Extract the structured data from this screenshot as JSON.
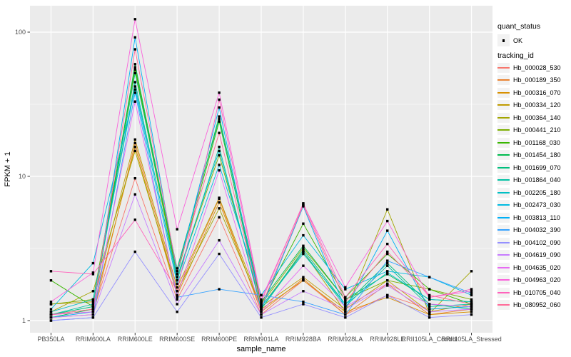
{
  "chart_data": {
    "type": "line",
    "title": "",
    "xlabel": "sample_name",
    "ylabel": "FPKM + 1",
    "y_scale": "log10",
    "ylim": [
      0.82,
      152
    ],
    "y_ticks": [
      1,
      10,
      100
    ],
    "y_minor_ticks": [
      3.1623,
      31.6228
    ],
    "grid": true,
    "legend_position": "right",
    "categories": [
      "PB350LA",
      "RRIM600LA",
      "RRIM600LE",
      "RRIM600SE",
      "RRIM600PE",
      "RRIM901LA",
      "RRIM928BA",
      "RRIM928LA",
      "RRIM928LE",
      "RRII105LA_Control",
      "RRII105LA_Stressed"
    ],
    "series": [
      {
        "name": "Hb_000028_530",
        "color": "#F8766D",
        "values": [
          1.1,
          1.15,
          9.7,
          1.4,
          5.2,
          1.1,
          1.9,
          1.1,
          1.5,
          1.2,
          1.25
        ]
      },
      {
        "name": "Hb_000189_350",
        "color": "#EA8331",
        "values": [
          1.05,
          1.1,
          17.0,
          1.6,
          7.0,
          1.15,
          1.95,
          1.1,
          1.8,
          1.1,
          1.2
        ]
      },
      {
        "name": "Hb_000316_070",
        "color": "#D89000",
        "values": [
          1.1,
          1.2,
          16.0,
          1.5,
          6.6,
          1.2,
          1.9,
          1.15,
          1.45,
          1.1,
          1.15
        ]
      },
      {
        "name": "Hb_000334_120",
        "color": "#C09B00",
        "values": [
          1.3,
          1.35,
          18.0,
          1.7,
          7.1,
          1.25,
          2.0,
          1.2,
          1.9,
          1.15,
          1.3
        ]
      },
      {
        "name": "Hb_000364_140",
        "color": "#A3A500",
        "values": [
          1.15,
          1.6,
          15.0,
          1.6,
          6.0,
          1.25,
          3.0,
          1.15,
          5.9,
          1.12,
          2.2
        ]
      },
      {
        "name": "Hb_000441_210",
        "color": "#7CAE00",
        "values": [
          1.3,
          1.4,
          55.0,
          2.0,
          14.0,
          1.3,
          3.2,
          1.4,
          1.9,
          1.65,
          1.4
        ]
      },
      {
        "name": "Hb_001168_030",
        "color": "#39B600",
        "values": [
          1.9,
          1.25,
          57.0,
          2.1,
          24.0,
          1.3,
          4.7,
          1.45,
          2.9,
          1.65,
          1.3
        ]
      },
      {
        "name": "Hb_001454_180",
        "color": "#00BB4E",
        "values": [
          1.05,
          1.2,
          60.0,
          2.2,
          26.0,
          1.35,
          3.3,
          1.4,
          2.1,
          1.4,
          1.35
        ]
      },
      {
        "name": "Hb_001699_070",
        "color": "#00BF7D",
        "values": [
          1.1,
          1.25,
          52.0,
          2.3,
          25.0,
          1.2,
          3.1,
          1.3,
          2.5,
          1.3,
          1.2
        ]
      },
      {
        "name": "Hb_001864_040",
        "color": "#00C1A3",
        "values": [
          1.1,
          1.3,
          45.0,
          1.9,
          16.0,
          1.2,
          3.0,
          1.25,
          2.4,
          1.25,
          1.3
        ]
      },
      {
        "name": "Hb_002205_180",
        "color": "#00BFC4",
        "values": [
          1.15,
          1.4,
          42.0,
          2.0,
          15.0,
          1.25,
          2.9,
          1.3,
          2.15,
          1.4,
          1.35
        ]
      },
      {
        "name": "Hb_002473_030",
        "color": "#00BAE0",
        "values": [
          1.2,
          2.5,
          40.0,
          1.8,
          12.0,
          1.5,
          3.9,
          1.65,
          2.2,
          2.0,
          1.5
        ]
      },
      {
        "name": "Hb_003813_110",
        "color": "#00B0F6",
        "values": [
          1.05,
          1.15,
          92.0,
          2.1,
          30.0,
          1.2,
          6.2,
          1.2,
          4.2,
          1.2,
          1.25
        ]
      },
      {
        "name": "Hb_004032_390",
        "color": "#35A2FF",
        "values": [
          1.0,
          1.05,
          38.0,
          1.45,
          1.65,
          1.5,
          1.35,
          1.1,
          2.6,
          2.0,
          1.55
        ]
      },
      {
        "name": "Hb_004102_090",
        "color": "#9590FF",
        "values": [
          1.0,
          1.05,
          3.0,
          1.15,
          2.9,
          1.05,
          1.3,
          1.05,
          1.5,
          1.05,
          1.1
        ]
      },
      {
        "name": "Hb_004619_090",
        "color": "#C77CFF",
        "values": [
          1.05,
          1.1,
          7.5,
          1.3,
          3.6,
          1.1,
          1.6,
          1.2,
          1.75,
          1.15,
          1.2
        ]
      },
      {
        "name": "Hb_004635_020",
        "color": "#E76BF3",
        "values": [
          1.1,
          1.15,
          33.0,
          1.5,
          11.0,
          1.15,
          2.4,
          1.25,
          1.8,
          1.3,
          1.25
        ]
      },
      {
        "name": "Hb_004963_020",
        "color": "#FA62DB",
        "values": [
          1.35,
          2.15,
          123.0,
          4.3,
          38.0,
          1.4,
          6.4,
          1.7,
          4.9,
          1.45,
          1.6
        ]
      },
      {
        "name": "Hb_010705_040",
        "color": "#FF62BC",
        "values": [
          2.2,
          2.1,
          5.0,
          1.6,
          34.0,
          1.35,
          6.5,
          1.45,
          3.4,
          1.45,
          1.65
        ]
      },
      {
        "name": "Hb_080952_060",
        "color": "#FF6A98",
        "values": [
          1.1,
          1.2,
          76.0,
          2.2,
          20.0,
          1.25,
          6.3,
          1.35,
          3.0,
          1.5,
          1.3
        ]
      }
    ],
    "legends": {
      "quant_status": {
        "title": "quant_status",
        "items": [
          {
            "label": "OK",
            "marker": "black-point"
          }
        ]
      },
      "tracking_id": {
        "title": "tracking_id"
      }
    },
    "style": {
      "panel_bg": "#EBEBEB",
      "grid_color": "#FFFFFF",
      "point_color": "#000000",
      "axis_text_color": "#4D4D4D",
      "tick_color": "#333333",
      "legend_key_bg": "#F2F2F2"
    }
  }
}
